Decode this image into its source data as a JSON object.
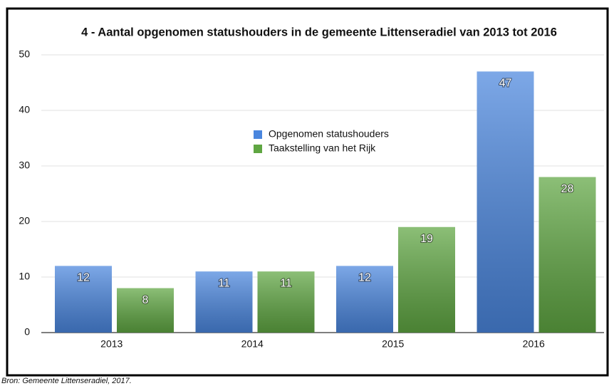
{
  "chart_data": {
    "type": "bar",
    "title": "4 - Aantal opgenomen statushouders in de gemeente Littenseradiel van 2013 tot 2016",
    "categories": [
      "2013",
      "2014",
      "2015",
      "2016"
    ],
    "series": [
      {
        "name": "Opgenomen statushouders",
        "color": "#4a86de",
        "values": [
          12,
          11,
          12,
          47
        ]
      },
      {
        "name": "Taakstelling van het Rijk",
        "color": "#5fa642",
        "values": [
          8,
          11,
          19,
          28
        ]
      }
    ],
    "ylim": [
      0,
      50
    ],
    "yticks": [
      0,
      10,
      20,
      30,
      40,
      50
    ],
    "grid": true,
    "source": "Bron:  Gemeente Littenseradiel, 2017."
  }
}
